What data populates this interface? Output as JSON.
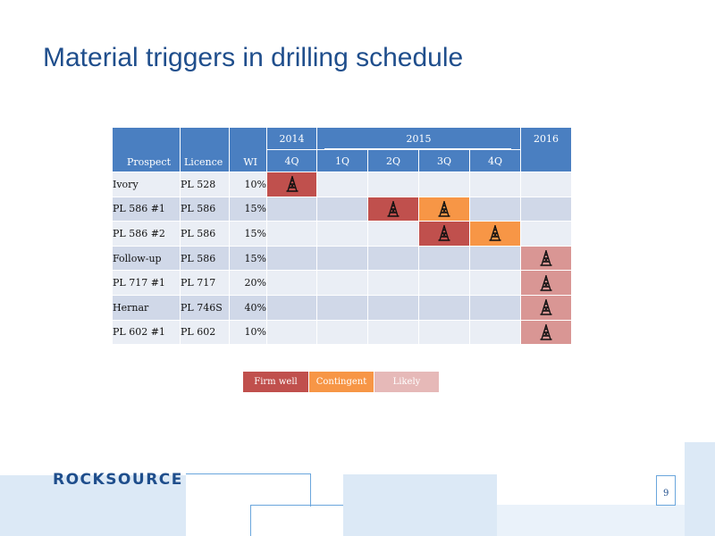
{
  "title": "Material triggers in drilling schedule",
  "table": {
    "years": [
      "2014",
      "2015",
      "2016"
    ],
    "columns": {
      "prospect": "Prospect",
      "licence": "Licence",
      "wi": "WI",
      "q1": "4Q",
      "q2": "1Q",
      "q3": "2Q",
      "q4": "3Q",
      "q5": "4Q"
    },
    "rows": [
      {
        "prospect": "Ivory",
        "licence": "PL 528",
        "wi": "10%"
      },
      {
        "prospect": "PL 586 #1",
        "licence": "PL 586",
        "wi": "15%"
      },
      {
        "prospect": "PL 586 #2",
        "licence": "PL 586",
        "wi": "15%"
      },
      {
        "prospect": "Follow-up",
        "licence": "PL 586",
        "wi": "15%"
      },
      {
        "prospect": "PL 717 #1",
        "licence": "PL 717",
        "wi": "20%"
      },
      {
        "prospect": "Hernar",
        "licence": "PL 746S",
        "wi": "40%"
      },
      {
        "prospect": "PL 602 #1",
        "licence": "PL 602",
        "wi": "10%"
      }
    ],
    "well_marker_icon": "drilling-rig-icon"
  },
  "legend": {
    "firm": "Firm well",
    "contingent": "Contingent",
    "likely": "Likely"
  },
  "colors": {
    "title": "#1f4e8c",
    "header": "#4a7fc1",
    "firm": "#c0504d",
    "contingent": "#f79646",
    "likely": "#d99694"
  },
  "footer": {
    "logo": "ROCKSOURCE",
    "page_number": "9"
  }
}
